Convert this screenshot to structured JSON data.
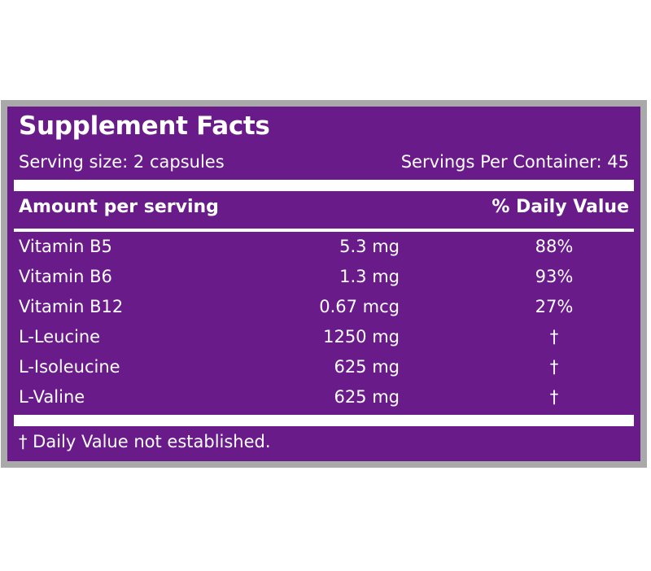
{
  "label": {
    "title": "Supplement Facts",
    "serving_size": "Serving size: 2 capsules",
    "servings_per_container": "Servings Per Container: 45",
    "amount_header": "Amount per serving",
    "daily_value_header": "% Daily Value",
    "nutrients": [
      {
        "name": "Vitamin B5",
        "amount": "5.3 mg",
        "dv": "88%"
      },
      {
        "name": "Vitamin B6",
        "amount": "1.3 mg",
        "dv": "93%"
      },
      {
        "name": "Vitamin B12",
        "amount": "0.67 mcg",
        "dv": "27%"
      },
      {
        "name": "L-Leucine",
        "amount": "1250 mg",
        "dv": "†"
      },
      {
        "name": "L-Isoleucine",
        "amount": "625 mg",
        "dv": "†"
      },
      {
        "name": "L-Valine",
        "amount": "625 mg",
        "dv": "†"
      }
    ],
    "footnote": "† Daily Value not established."
  },
  "colors": {
    "panel": "#6a1b8a",
    "frame": "#a9a9a9",
    "text": "#ffffff"
  }
}
